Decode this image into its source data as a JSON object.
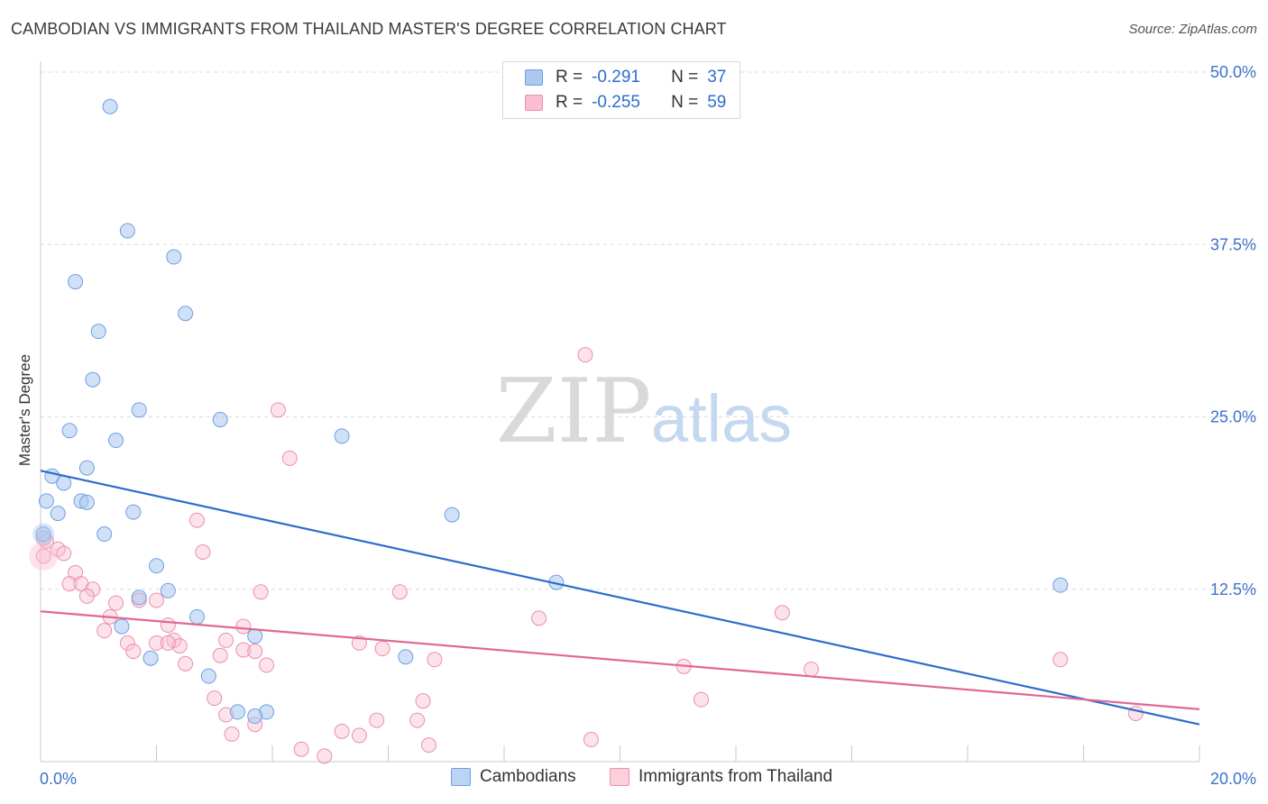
{
  "header": {
    "title": "CAMBODIAN VS IMMIGRANTS FROM THAILAND MASTER'S DEGREE CORRELATION CHART",
    "source": "Source: ZipAtlas.com"
  },
  "watermark": {
    "zip": "ZIP",
    "atlas": "atlas"
  },
  "legend": {
    "rows": [
      {
        "r_label": "R =",
        "r_value": "-0.291",
        "n_label": "N =",
        "n_value": "37",
        "color": "#aac8f0",
        "border": "#6f9fe0"
      },
      {
        "r_label": "R =",
        "r_value": "-0.255",
        "n_label": "N =",
        "n_value": "59",
        "color": "#f9bfd0",
        "border": "#ec8fab"
      }
    ]
  },
  "bottom_legend": {
    "items": [
      {
        "label": "Cambodians",
        "color": "#bcd4f4",
        "border": "#6f9fe0"
      },
      {
        "label": "Immigrants from Thailand",
        "color": "#fbd0dc",
        "border": "#ec8fab"
      }
    ]
  },
  "chart_data": {
    "type": "scatter",
    "title": "CAMBODIAN VS IMMIGRANTS FROM THAILAND MASTER'S DEGREE CORRELATION CHART",
    "xlabel": "",
    "ylabel": "Master's Degree",
    "xlim": [
      0,
      20
    ],
    "ylim": [
      0,
      50
    ],
    "x_tick_labels": [
      "0.0%",
      "20.0%"
    ],
    "y_ticks": [
      12.5,
      25.0,
      37.5,
      50.0
    ],
    "y_tick_labels": [
      "12.5%",
      "25.0%",
      "37.5%",
      "50.0%"
    ],
    "grid": "horizontal dashed",
    "legend_position": "top-center",
    "colors": {
      "cambodians": "#2f6ccd",
      "thailand": "#e06893",
      "axis_text": "#3d72c9"
    },
    "series": [
      {
        "name": "Cambodians",
        "r": -0.291,
        "n": 37,
        "trend": {
          "x": [
            0,
            20
          ],
          "y": [
            21.1,
            2.7
          ]
        },
        "points": [
          [
            1.2,
            47.5
          ],
          [
            1.5,
            38.5
          ],
          [
            2.3,
            36.6
          ],
          [
            0.6,
            34.8
          ],
          [
            2.5,
            32.5
          ],
          [
            1.0,
            31.2
          ],
          [
            0.9,
            27.7
          ],
          [
            1.7,
            25.5
          ],
          [
            3.1,
            24.8
          ],
          [
            0.5,
            24.0
          ],
          [
            1.3,
            23.3
          ],
          [
            5.2,
            23.6
          ],
          [
            0.8,
            21.3
          ],
          [
            0.2,
            20.7
          ],
          [
            0.4,
            20.2
          ],
          [
            0.1,
            18.9
          ],
          [
            0.7,
            18.9
          ],
          [
            0.8,
            18.8
          ],
          [
            0.3,
            18.0
          ],
          [
            1.6,
            18.1
          ],
          [
            7.1,
            17.9
          ],
          [
            1.1,
            16.5
          ],
          [
            0.05,
            16.5
          ],
          [
            2.0,
            14.2
          ],
          [
            8.9,
            13.0
          ],
          [
            17.6,
            12.8
          ],
          [
            2.2,
            12.4
          ],
          [
            1.7,
            11.9
          ],
          [
            2.7,
            10.5
          ],
          [
            1.4,
            9.8
          ],
          [
            3.7,
            9.1
          ],
          [
            6.3,
            7.6
          ],
          [
            1.9,
            7.5
          ],
          [
            2.9,
            6.2
          ],
          [
            3.4,
            3.6
          ],
          [
            3.9,
            3.6
          ],
          [
            3.7,
            3.3
          ]
        ]
      },
      {
        "name": "Immigrants from Thailand",
        "r": -0.255,
        "n": 59,
        "trend": {
          "x": [
            0,
            20
          ],
          "y": [
            10.9,
            3.8
          ]
        },
        "points": [
          [
            0.05,
            14.9
          ],
          [
            0.1,
            16.0
          ],
          [
            0.3,
            15.4
          ],
          [
            0.4,
            15.1
          ],
          [
            0.6,
            13.7
          ],
          [
            0.5,
            12.9
          ],
          [
            0.7,
            12.9
          ],
          [
            0.9,
            12.5
          ],
          [
            0.8,
            12.0
          ],
          [
            1.3,
            11.5
          ],
          [
            1.2,
            10.5
          ],
          [
            1.1,
            9.5
          ],
          [
            2.2,
            9.9
          ],
          [
            2.7,
            17.5
          ],
          [
            2.8,
            15.2
          ],
          [
            3.8,
            12.3
          ],
          [
            4.1,
            25.5
          ],
          [
            4.3,
            22.0
          ],
          [
            9.4,
            29.5
          ],
          [
            6.2,
            12.3
          ],
          [
            3.5,
            9.8
          ],
          [
            2.0,
            11.7
          ],
          [
            1.7,
            11.7
          ],
          [
            1.5,
            8.6
          ],
          [
            1.6,
            8.0
          ],
          [
            2.0,
            8.6
          ],
          [
            2.3,
            8.8
          ],
          [
            2.4,
            8.4
          ],
          [
            2.2,
            8.6
          ],
          [
            2.5,
            7.1
          ],
          [
            3.1,
            7.7
          ],
          [
            3.2,
            8.8
          ],
          [
            3.5,
            8.1
          ],
          [
            3.7,
            8.0
          ],
          [
            3.9,
            7.0
          ],
          [
            5.5,
            8.6
          ],
          [
            5.9,
            8.2
          ],
          [
            6.8,
            7.4
          ],
          [
            8.6,
            10.4
          ],
          [
            12.8,
            10.8
          ],
          [
            11.1,
            6.9
          ],
          [
            13.3,
            6.7
          ],
          [
            17.6,
            7.4
          ],
          [
            18.9,
            3.5
          ],
          [
            11.4,
            4.5
          ],
          [
            3.0,
            4.6
          ],
          [
            3.2,
            3.4
          ],
          [
            3.3,
            2.0
          ],
          [
            3.7,
            2.7
          ],
          [
            5.2,
            2.2
          ],
          [
            5.5,
            1.9
          ],
          [
            5.8,
            3.0
          ],
          [
            6.5,
            3.0
          ],
          [
            6.6,
            4.4
          ],
          [
            6.7,
            1.2
          ],
          [
            9.5,
            1.6
          ],
          [
            4.5,
            0.9
          ],
          [
            4.9,
            0.4
          ],
          [
            0.05,
            16.2
          ]
        ]
      }
    ]
  }
}
